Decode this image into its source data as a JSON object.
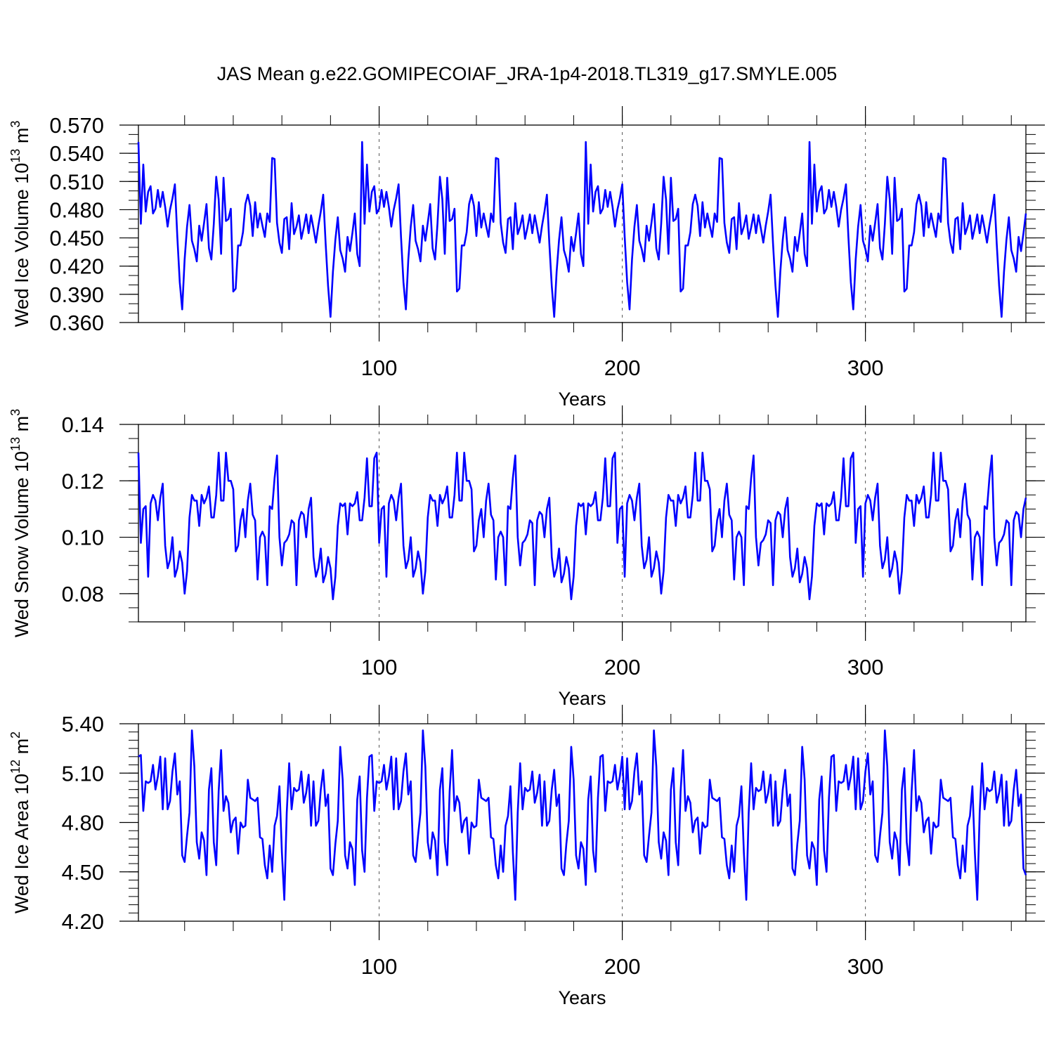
{
  "chart_data": [
    {
      "type": "line",
      "title": "JAS Mean g.e22.GOMIPECOIAF_JRA-1p4-2018.TL319_g17.SMYLE.005",
      "ylabel": "Wed Ice Volume 10",
      "ylabel_exp": "13",
      "ylabel_unit": "m",
      "ylabel_unit_exp": "3",
      "xlabel": "Years",
      "xlim": [
        1,
        366
      ],
      "ylim": [
        0.36,
        0.57
      ],
      "yticks": [
        "0.360",
        "0.390",
        "0.420",
        "0.450",
        "0.480",
        "0.510",
        "0.540",
        "0.570"
      ],
      "yticks_values": [
        0.36,
        0.39,
        0.42,
        0.45,
        0.48,
        0.51,
        0.54,
        0.57
      ],
      "yminor_step": 0.01,
      "xticks": [
        "100",
        "200",
        "300"
      ],
      "xticks_values": [
        100,
        200,
        300
      ],
      "xminor_step": 20,
      "vlines": [
        100,
        200,
        300
      ],
      "line_color": "#0000ff",
      "series": [
        {
          "name": "Wed Ice Volume",
          "pattern": [
            0.552,
            0.465,
            0.528,
            0.478,
            0.499,
            0.505,
            0.476,
            0.481,
            0.501,
            0.483,
            0.499,
            0.483,
            0.462,
            0.48,
            0.492,
            0.507,
            0.451,
            0.403,
            0.374,
            0.427,
            0.462,
            0.485,
            0.447,
            0.438,
            0.425,
            0.463,
            0.447,
            0.466,
            0.486,
            0.439,
            0.427,
            0.465,
            0.515,
            0.491,
            0.433,
            0.514,
            0.468,
            0.47,
            0.481,
            0.393,
            0.396,
            0.442,
            0.442,
            0.456,
            0.486,
            0.496,
            0.484,
            0.452,
            0.488,
            0.461,
            0.476,
            0.463,
            0.451,
            0.476,
            0.467,
            0.535,
            0.534,
            0.466,
            0.445,
            0.434,
            0.47,
            0.472,
            0.438,
            0.487,
            0.454,
            0.462,
            0.474,
            0.449,
            0.461,
            0.475,
            0.455,
            0.474,
            0.46,
            0.445,
            0.463,
            0.478,
            0.496,
            0.444,
            0.399,
            0.366,
            0.414,
            0.448,
            0.472,
            0.437,
            0.428,
            0.414,
            0.451,
            0.436,
            0.455,
            0.476,
            0.433,
            0.42
          ]
        }
      ]
    },
    {
      "type": "line",
      "ylabel": "Wed Snow Volume 10",
      "ylabel_exp": "13",
      "ylabel_unit": "m",
      "ylabel_unit_exp": "3",
      "xlabel": "Years",
      "xlim": [
        1,
        366
      ],
      "ylim": [
        0.07,
        0.14
      ],
      "yticks": [
        "0.08",
        "0.10",
        "0.12",
        "0.14"
      ],
      "yticks_values": [
        0.08,
        0.1,
        0.12,
        0.14
      ],
      "yminor_step": 0.005,
      "xticks": [
        "100",
        "200",
        "300"
      ],
      "xticks_values": [
        100,
        200,
        300
      ],
      "xminor_step": 20,
      "vlines": [
        100,
        200,
        300
      ],
      "line_color": "#0000ff",
      "series": [
        {
          "name": "Wed Snow Volume",
          "pattern": [
            0.13,
            0.098,
            0.11,
            0.111,
            0.086,
            0.112,
            0.115,
            0.113,
            0.106,
            0.114,
            0.119,
            0.097,
            0.089,
            0.092,
            0.1,
            0.086,
            0.089,
            0.095,
            0.091,
            0.08,
            0.088,
            0.107,
            0.115,
            0.113,
            0.113,
            0.104,
            0.115,
            0.112,
            0.114,
            0.118,
            0.107,
            0.107,
            0.115,
            0.13,
            0.113,
            0.113,
            0.13,
            0.12,
            0.12,
            0.117,
            0.095,
            0.097,
            0.106,
            0.11,
            0.1,
            0.113,
            0.119,
            0.108,
            0.106,
            0.085,
            0.1,
            0.102,
            0.1,
            0.083,
            0.111,
            0.11,
            0.121,
            0.129,
            0.1,
            0.09,
            0.098,
            0.099,
            0.101,
            0.106,
            0.105,
            0.083,
            0.106,
            0.109,
            0.108,
            0.1,
            0.11,
            0.114,
            0.093,
            0.086,
            0.089,
            0.096,
            0.084,
            0.087,
            0.093,
            0.089,
            0.078,
            0.086,
            0.104,
            0.112,
            0.111,
            0.112,
            0.101,
            0.112,
            0.111,
            0.112,
            0.116,
            0.106,
            0.106,
            0.114,
            0.128,
            0.111,
            0.111,
            0.128
          ]
        }
      ]
    },
    {
      "type": "line",
      "ylabel": "Wed Ice Area 10",
      "ylabel_exp": "12",
      "ylabel_unit": "m",
      "ylabel_unit_exp": "2",
      "xlabel": "Years",
      "xlim": [
        1,
        366
      ],
      "ylim": [
        4.2,
        5.4
      ],
      "yticks": [
        "4.20",
        "4.50",
        "4.80",
        "5.10",
        "5.40"
      ],
      "yticks_values": [
        4.2,
        4.5,
        4.8,
        5.1,
        5.4
      ],
      "yminor_step": 0.05,
      "xticks": [
        "100",
        "200",
        "300"
      ],
      "xticks_values": [
        100,
        200,
        300
      ],
      "xminor_step": 20,
      "vlines": [
        100,
        200,
        300
      ],
      "line_color": "#0000ff",
      "series": [
        {
          "name": "Wed Ice Area",
          "pattern": [
            5.2,
            5.21,
            4.87,
            5.05,
            5.04,
            5.05,
            5.15,
            5.0,
            5.08,
            5.2,
            4.88,
            5.19,
            4.88,
            4.93,
            5.11,
            5.22,
            4.97,
            5.05,
            4.6,
            4.56,
            4.72,
            4.86,
            5.36,
            5.14,
            4.68,
            4.58,
            4.74,
            4.69,
            4.48,
            5.0,
            5.13,
            4.68,
            4.54,
            4.99,
            5.24,
            4.87,
            4.96,
            4.92,
            4.74,
            4.81,
            4.83,
            4.61,
            4.8,
            4.77,
            4.78,
            5.06,
            4.95,
            4.94,
            4.93,
            4.95,
            4.71,
            4.7,
            4.54,
            4.46,
            4.66,
            4.5,
            4.78,
            4.84,
            5.02,
            4.62,
            4.33,
            4.86,
            5.16,
            4.88,
            5.01,
            4.99,
            5.0,
            5.11,
            4.92,
            4.98,
            5.09,
            4.78,
            5.05,
            4.78,
            4.81,
            5.0,
            5.12,
            4.9,
            4.97,
            4.52,
            4.48,
            4.67,
            4.81,
            5.26,
            5.06,
            4.6,
            4.52,
            4.68,
            4.64,
            4.42,
            4.94,
            5.08,
            4.63,
            4.5,
            4.95
          ]
        }
      ]
    }
  ]
}
